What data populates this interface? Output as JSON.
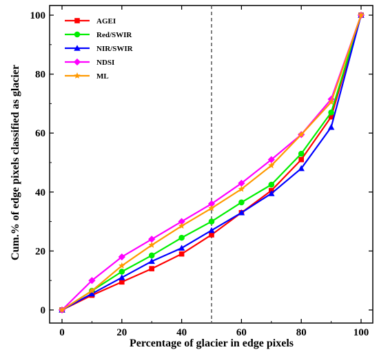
{
  "chart_data": {
    "type": "line",
    "xlabel": "Percentage of glacier in edge pixels",
    "ylabel": "Cum.% of edge pixels classified as glacier",
    "xlim": [
      0,
      100
    ],
    "ylim": [
      0,
      100
    ],
    "xticks": [
      0,
      20,
      40,
      60,
      80,
      100
    ],
    "yticks": [
      0,
      20,
      40,
      60,
      80,
      100
    ],
    "grid": false,
    "legend_position": "top-left",
    "x": [
      0,
      10,
      20,
      30,
      40,
      50,
      60,
      70,
      80,
      90,
      100
    ],
    "vertical_reference_line": {
      "x": 50,
      "style": "dashed"
    },
    "series": [
      {
        "name": "AGEI",
        "color": "#ff0000",
        "marker": "square",
        "values": [
          0,
          5,
          9.5,
          14,
          19,
          25.5,
          33,
          40.5,
          51,
          65.5,
          100
        ]
      },
      {
        "name": "Red/SWIR",
        "color": "#00ee00",
        "marker": "circle",
        "values": [
          0,
          6.5,
          13,
          18.5,
          24.5,
          30,
          36.5,
          42.5,
          53,
          67,
          100
        ]
      },
      {
        "name": "NIR/SWIR",
        "color": "#0000ff",
        "marker": "triangle",
        "values": [
          0,
          5.5,
          11,
          16.5,
          21,
          27,
          33,
          39.5,
          48,
          62,
          100
        ]
      },
      {
        "name": "NDSI",
        "color": "#ff00ff",
        "marker": "diamond",
        "values": [
          0,
          10,
          18,
          24,
          30,
          36,
          43,
          51,
          59.5,
          71.5,
          100
        ]
      },
      {
        "name": "ML",
        "color": "#ff9900",
        "marker": "star",
        "values": [
          0,
          6.5,
          15,
          22,
          28.5,
          34.5,
          41,
          49,
          59.5,
          70.5,
          100
        ]
      }
    ]
  }
}
